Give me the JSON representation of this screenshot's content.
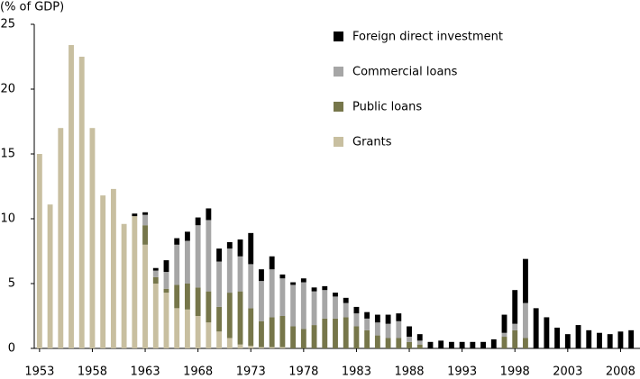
{
  "chart_data": {
    "type": "stacked-bar",
    "y_label": "(% of GDP)",
    "x": [
      1953,
      1954,
      1955,
      1956,
      1957,
      1958,
      1959,
      1960,
      1961,
      1962,
      1963,
      1964,
      1965,
      1966,
      1967,
      1968,
      1969,
      1970,
      1971,
      1972,
      1973,
      1974,
      1975,
      1976,
      1977,
      1978,
      1979,
      1980,
      1981,
      1982,
      1983,
      1984,
      1985,
      1986,
      1987,
      1988,
      1989,
      1990,
      1991,
      1992,
      1993,
      1994,
      1995,
      1996,
      1997,
      1998,
      1999,
      2000,
      2001,
      2002,
      2003,
      2004,
      2005,
      2006,
      2007,
      2008,
      2009
    ],
    "xlim": [
      1952.5,
      2009.5
    ],
    "xticks": [
      1953,
      1958,
      1963,
      1968,
      1973,
      1978,
      1983,
      1988,
      1993,
      1998,
      2003,
      2008
    ],
    "ylim": [
      0,
      25
    ],
    "yticks": [
      0,
      5,
      10,
      15,
      20,
      25
    ],
    "grid": false,
    "legend": "upper right",
    "series": [
      {
        "name": "Foreign direct investment",
        "color": "#000000",
        "values": [
          0,
          0,
          0,
          0,
          0,
          0,
          0,
          0,
          0,
          0.2,
          0.2,
          0.2,
          0.9,
          0.5,
          0.7,
          0.6,
          0.9,
          1.0,
          0.5,
          1.3,
          2.4,
          0.9,
          1.0,
          0.3,
          0.2,
          0.3,
          0.3,
          0.3,
          0.3,
          0.4,
          0.5,
          0.5,
          0.6,
          0.7,
          0.6,
          0.8,
          0.5,
          0.5,
          0.6,
          0.5,
          0.5,
          0.5,
          0.5,
          0.7,
          1.4,
          2.6,
          3.4,
          3.1,
          2.4,
          1.6,
          1.1,
          1.8,
          1.4,
          1.2,
          1.1,
          1.3,
          1.4
        ]
      },
      {
        "name": "Commercial loans",
        "color": "#a6a6a6",
        "values": [
          0,
          0,
          0,
          0,
          0,
          0,
          0,
          0,
          0,
          0,
          0.8,
          0.5,
          1.3,
          3.1,
          3.3,
          4.8,
          5.5,
          3.5,
          3.4,
          2.7,
          3.4,
          3.1,
          3.7,
          2.9,
          3.2,
          3.6,
          2.6,
          2.2,
          1.7,
          1.1,
          1.0,
          0.9,
          1.0,
          1.1,
          1.3,
          0.4,
          0.3,
          0,
          0,
          0,
          0,
          0,
          0,
          0,
          0.3,
          0.5,
          2.7,
          0,
          0,
          0,
          0,
          0,
          0,
          0,
          0,
          0,
          0
        ]
      },
      {
        "name": "Public loans",
        "color": "#76764a",
        "values": [
          0,
          0,
          0,
          0,
          0,
          0,
          0,
          0,
          0,
          0,
          1.5,
          0.5,
          0.3,
          1.8,
          2.0,
          2.2,
          2.4,
          1.9,
          3.5,
          4.1,
          2.9,
          2.0,
          2.3,
          2.4,
          1.7,
          1.5,
          1.8,
          2.3,
          2.3,
          2.4,
          1.7,
          1.4,
          1.0,
          0.8,
          0.8,
          0.5,
          0.3,
          0,
          0,
          0,
          0,
          0,
          0,
          0,
          0.9,
          1.4,
          0.8,
          0,
          0,
          0,
          0,
          0,
          0,
          0,
          0,
          0,
          0
        ]
      },
      {
        "name": "Grants",
        "color": "#c8bfa0",
        "values": [
          15.0,
          11.1,
          17.0,
          23.4,
          22.5,
          17.0,
          11.8,
          12.3,
          9.6,
          10.2,
          8.0,
          5.0,
          4.3,
          3.1,
          3.0,
          2.5,
          2.0,
          1.3,
          0.8,
          0.3,
          0.2,
          0.1,
          0.1,
          0.1,
          0,
          0,
          0,
          0,
          0,
          0,
          0,
          0,
          0,
          0,
          0,
          0,
          0,
          0,
          0,
          0,
          0,
          0,
          0,
          0,
          0,
          0,
          0,
          0,
          0,
          0,
          0,
          0,
          0,
          0,
          0,
          0,
          0
        ]
      }
    ]
  }
}
